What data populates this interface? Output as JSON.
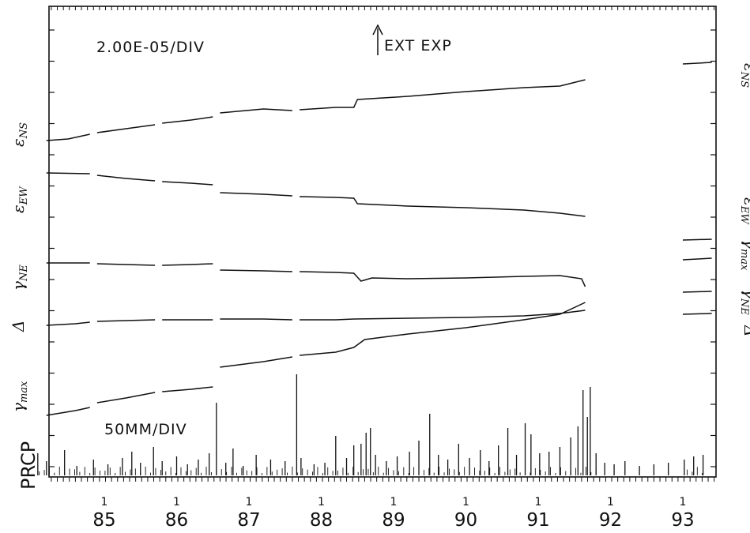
{
  "chart_data": {
    "type": "line",
    "annotations": {
      "strain_scale": "2.00E-05/DIV",
      "event": "EXT EXP",
      "precip_scale": "50MM/DIV"
    },
    "left_labels": {
      "ens": "ε",
      "ens_sub": "NS",
      "eew": "ε",
      "eew_sub": "EW",
      "gne": "γ",
      "gne_sub": "NE",
      "delta": "Δ",
      "gmax": "γ",
      "gmax_sub": "max",
      "prcp": "PRCP"
    },
    "right_labels": {
      "ens": "ε",
      "ens_sub": "NS",
      "eew": "ε",
      "eew_sub": "EW",
      "gmax": "γ",
      "gmax_sub": "max",
      "gne": "γ",
      "gne_sub": "NE",
      "delta": "Δ"
    },
    "x_tick_labels": [
      "85",
      "86",
      "87",
      "88",
      "89",
      "90",
      "91",
      "92",
      "93"
    ],
    "x_tick_prefix": "1",
    "xlim": [
      84.0,
      93.5
    ],
    "event_x": 88.7,
    "grid": false,
    "series": [
      {
        "key": "ens",
        "segments": [
          [
            [
              84.2,
              178
            ],
            [
              84.5,
              176
            ],
            [
              84.8,
              170
            ]
          ],
          [
            [
              84.9,
              168
            ],
            [
              85.3,
              163
            ],
            [
              85.7,
              158
            ]
          ],
          [
            [
              85.8,
              156
            ],
            [
              86.2,
              152
            ],
            [
              86.5,
              148
            ]
          ],
          [
            [
              86.6,
              143
            ],
            [
              87.2,
              138
            ],
            [
              87.6,
              140
            ]
          ],
          [
            [
              87.7,
              139
            ],
            [
              88.2,
              136
            ],
            [
              88.45,
              136
            ],
            [
              88.5,
              126
            ],
            [
              89.2,
              122
            ],
            [
              90,
              116
            ],
            [
              90.8,
              111
            ],
            [
              91.3,
              109
            ],
            [
              91.65,
              101
            ]
          ]
        ],
        "post": [
          [
            [
              93.0,
              81
            ],
            [
              93.4,
              79
            ]
          ]
        ]
      },
      {
        "key": "eew",
        "segments": [
          [
            [
              84.2,
              219
            ],
            [
              84.8,
              220
            ]
          ],
          [
            [
              84.9,
              222
            ],
            [
              85.3,
              226
            ],
            [
              85.7,
              229
            ]
          ],
          [
            [
              85.8,
              230
            ],
            [
              86.2,
              232
            ],
            [
              86.5,
              234
            ]
          ],
          [
            [
              86.6,
              244
            ],
            [
              87.2,
              246
            ],
            [
              87.6,
              248
            ]
          ],
          [
            [
              87.7,
              249
            ],
            [
              88.2,
              250
            ],
            [
              88.45,
              251
            ],
            [
              88.5,
              258
            ],
            [
              89.2,
              261
            ],
            [
              90,
              263
            ],
            [
              90.8,
              266
            ],
            [
              91.3,
              270
            ],
            [
              91.65,
              274
            ]
          ]
        ],
        "post": [
          [
            [
              93.0,
              304
            ],
            [
              93.4,
              303
            ]
          ]
        ]
      },
      {
        "key": "gne",
        "segments": [
          [
            [
              84.2,
              333
            ],
            [
              84.8,
              333
            ]
          ],
          [
            [
              84.9,
              334
            ],
            [
              85.3,
              335
            ],
            [
              85.7,
              336
            ]
          ],
          [
            [
              85.8,
              336
            ],
            [
              86.2,
              335
            ],
            [
              86.5,
              334
            ]
          ],
          [
            [
              86.6,
              342
            ],
            [
              87.2,
              343
            ],
            [
              87.6,
              344
            ]
          ],
          [
            [
              87.7,
              344
            ],
            [
              88.2,
              345
            ],
            [
              88.45,
              346
            ],
            [
              88.55,
              356
            ],
            [
              88.7,
              352
            ],
            [
              89.2,
              353
            ],
            [
              90,
              352
            ],
            [
              90.8,
              350
            ],
            [
              91.3,
              349
            ],
            [
              91.6,
              353
            ],
            [
              91.65,
              363
            ]
          ]
        ],
        "post": [
          [
            [
              93.0,
              329
            ],
            [
              93.4,
              327
            ]
          ]
        ]
      },
      {
        "key": "delta",
        "segments": [
          [
            [
              84.2,
              412
            ],
            [
              84.6,
              410
            ],
            [
              84.8,
              408
            ]
          ],
          [
            [
              84.9,
              407
            ],
            [
              85.3,
              406
            ],
            [
              85.7,
              405
            ]
          ],
          [
            [
              85.8,
              405
            ],
            [
              86.2,
              405
            ],
            [
              86.5,
              405
            ]
          ],
          [
            [
              86.6,
              404
            ],
            [
              87.2,
              404
            ],
            [
              87.6,
              405
            ]
          ],
          [
            [
              87.7,
              405
            ],
            [
              88.2,
              405
            ],
            [
              88.45,
              404
            ],
            [
              89.2,
              403
            ],
            [
              90,
              402
            ],
            [
              90.8,
              400
            ],
            [
              91.3,
              397
            ],
            [
              91.65,
              393
            ]
          ]
        ],
        "post": [
          [
            [
              93.0,
              370
            ],
            [
              93.4,
              369
            ]
          ]
        ]
      },
      {
        "key": "gmax",
        "segments": [
          [
            [
              84.2,
              526
            ],
            [
              84.6,
              520
            ],
            [
              84.8,
              516
            ]
          ],
          [
            [
              84.9,
              510
            ],
            [
              85.3,
              504
            ],
            [
              85.7,
              497
            ]
          ],
          [
            [
              85.8,
              496
            ],
            [
              86.2,
              493
            ],
            [
              86.5,
              490
            ]
          ],
          [
            [
              86.6,
              465
            ],
            [
              87.2,
              458
            ],
            [
              87.6,
              452
            ]
          ],
          [
            [
              87.7,
              450
            ],
            [
              88.2,
              446
            ],
            [
              88.45,
              440
            ],
            [
              88.6,
              430
            ],
            [
              89.2,
              423
            ],
            [
              90,
              415
            ],
            [
              90.8,
              405
            ],
            [
              91.3,
              398
            ],
            [
              91.65,
              383
            ]
          ]
        ],
        "post": [
          [
            [
              93.0,
              398
            ],
            [
              93.4,
              397
            ]
          ]
        ]
      }
    ],
    "precip_bars": [
      [
        84.08,
        28
      ],
      [
        84.2,
        18
      ],
      [
        84.45,
        32
      ],
      [
        84.62,
        12
      ],
      [
        84.85,
        20
      ],
      [
        85.05,
        14
      ],
      [
        85.25,
        22
      ],
      [
        85.38,
        30
      ],
      [
        85.5,
        16
      ],
      [
        85.68,
        36
      ],
      [
        85.8,
        18
      ],
      [
        86.0,
        24
      ],
      [
        86.15,
        14
      ],
      [
        86.3,
        20
      ],
      [
        86.45,
        28
      ],
      [
        86.55,
        92
      ],
      [
        86.68,
        16
      ],
      [
        86.78,
        34
      ],
      [
        86.92,
        12
      ],
      [
        87.1,
        26
      ],
      [
        87.3,
        20
      ],
      [
        87.5,
        18
      ],
      [
        87.66,
        128
      ],
      [
        87.72,
        22
      ],
      [
        87.9,
        14
      ],
      [
        88.05,
        16
      ],
      [
        88.2,
        50
      ],
      [
        88.35,
        22
      ],
      [
        88.45,
        38
      ],
      [
        88.55,
        40
      ],
      [
        88.62,
        54
      ],
      [
        88.68,
        60
      ],
      [
        88.75,
        26
      ],
      [
        88.9,
        18
      ],
      [
        89.05,
        24
      ],
      [
        89.22,
        30
      ],
      [
        89.35,
        44
      ],
      [
        89.5,
        78
      ],
      [
        89.62,
        26
      ],
      [
        89.75,
        20
      ],
      [
        89.9,
        40
      ],
      [
        90.05,
        22
      ],
      [
        90.2,
        32
      ],
      [
        90.32,
        18
      ],
      [
        90.45,
        38
      ],
      [
        90.58,
        60
      ],
      [
        90.7,
        26
      ],
      [
        90.82,
        66
      ],
      [
        90.9,
        52
      ],
      [
        91.02,
        28
      ],
      [
        91.15,
        30
      ],
      [
        91.3,
        36
      ],
      [
        91.45,
        48
      ],
      [
        91.55,
        62
      ],
      [
        91.62,
        108
      ],
      [
        91.68,
        74
      ],
      [
        91.72,
        112
      ],
      [
        91.8,
        28
      ],
      [
        91.92,
        16
      ],
      [
        92.05,
        14
      ],
      [
        92.2,
        18
      ],
      [
        92.4,
        12
      ],
      [
        92.6,
        14
      ],
      [
        92.8,
        16
      ],
      [
        93.02,
        20
      ],
      [
        93.15,
        24
      ],
      [
        93.28,
        26
      ]
    ]
  }
}
